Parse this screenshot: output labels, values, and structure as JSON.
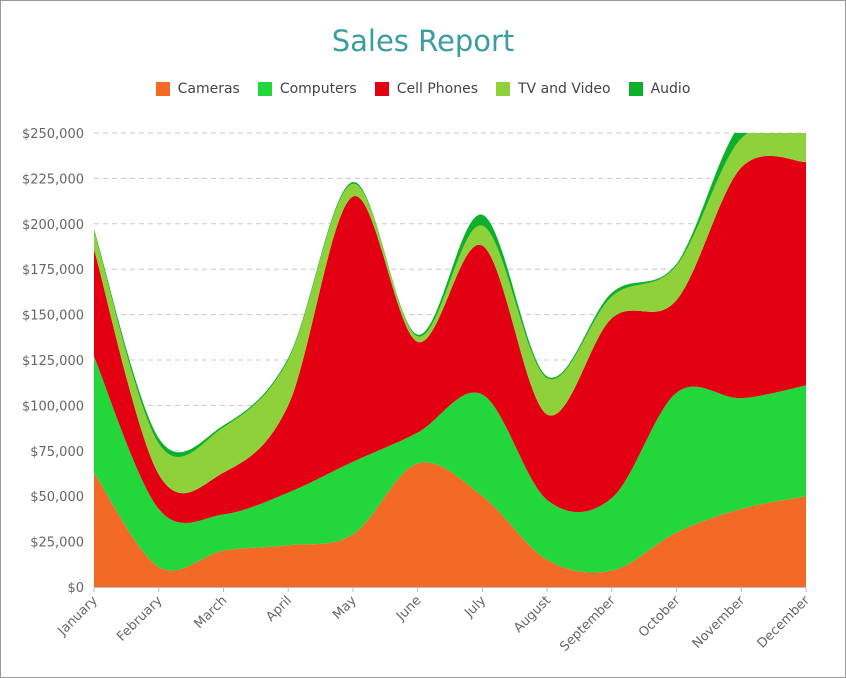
{
  "chart_data": {
    "type": "area",
    "stacked": true,
    "smooth": true,
    "title": "Sales Report",
    "xlabel": "",
    "ylabel": "",
    "ylim": [
      0,
      250000
    ],
    "yticks": [
      0,
      25000,
      50000,
      75000,
      100000,
      125000,
      150000,
      175000,
      200000,
      225000,
      250000
    ],
    "ytick_labels": [
      "$0",
      "$25,000",
      "$50,000",
      "$75,000",
      "$100,000",
      "$125,000",
      "$150,000",
      "$175,000",
      "$200,000",
      "$225,000",
      "$250,000"
    ],
    "grid": "horizontal-dashed",
    "legend_position": "top-center",
    "categories": [
      "January",
      "February",
      "March",
      "April",
      "May",
      "June",
      "July",
      "August",
      "September",
      "October",
      "November",
      "December"
    ],
    "series": [
      {
        "name": "Cameras",
        "color": "#f26a26",
        "values": [
          63000,
          11000,
          20000,
          23000,
          29000,
          68000,
          50000,
          15000,
          9000,
          30000,
          43000,
          50000
        ]
      },
      {
        "name": "Computers",
        "color": "#22d63b",
        "values": [
          64000,
          32000,
          20000,
          29000,
          40000,
          17000,
          56000,
          33000,
          40000,
          77000,
          61000,
          61000
        ]
      },
      {
        "name": "Cell Phones",
        "color": "#e20012",
        "values": [
          59000,
          19000,
          23000,
          48000,
          146000,
          50000,
          82000,
          47000,
          99000,
          51000,
          127000,
          123000
        ]
      },
      {
        "name": "TV and Video",
        "color": "#8fd13a",
        "values": [
          10000,
          17000,
          25000,
          25000,
          7000,
          3000,
          11000,
          20000,
          12000,
          19000,
          16000,
          16000
        ]
      },
      {
        "name": "Audio",
        "color": "#0db02b",
        "values": [
          1000,
          3000,
          1000,
          1000,
          1000,
          1000,
          6000,
          1000,
          2000,
          1000,
          8000,
          2000
        ]
      }
    ]
  }
}
